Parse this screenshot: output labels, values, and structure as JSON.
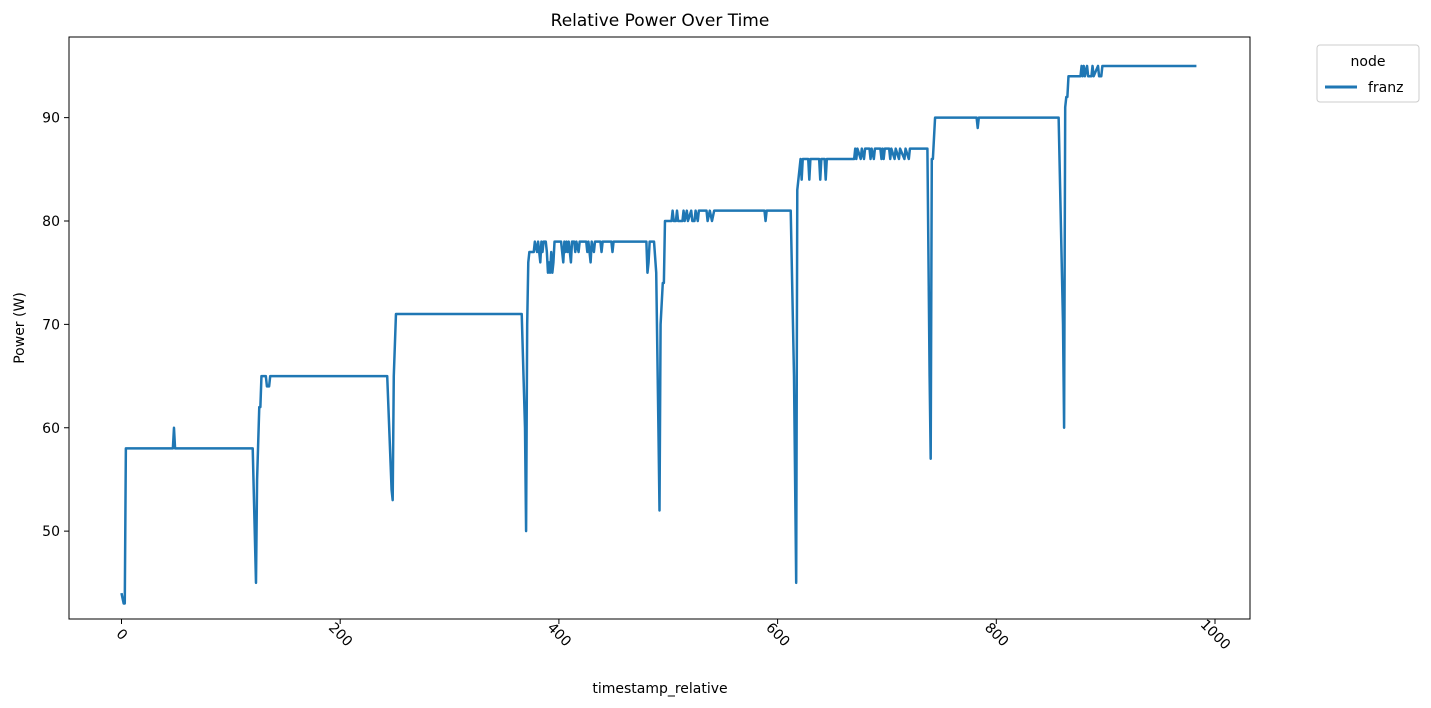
{
  "chart_data": {
    "type": "line",
    "title": "Relative Power Over Time",
    "xlabel": "timestamp_relative",
    "ylabel": "Power (W)",
    "xlim": [
      -48,
      1032
    ],
    "ylim": [
      41.5,
      97.8
    ],
    "xticks": [
      0,
      200,
      400,
      600,
      800,
      1000
    ],
    "yticks": [
      50,
      60,
      70,
      80,
      90
    ],
    "xtick_rotation": 45,
    "grid": false,
    "legend": {
      "title": "node",
      "placement": "upper-right-outside"
    },
    "series": [
      {
        "name": "franz",
        "color": "#1f77b4",
        "points": [
          [
            0,
            44
          ],
          [
            1,
            43.5
          ],
          [
            2,
            43
          ],
          [
            3,
            43
          ],
          [
            4,
            58
          ],
          [
            47,
            58
          ],
          [
            48,
            60
          ],
          [
            49,
            58
          ],
          [
            120,
            58
          ],
          [
            123,
            45
          ],
          [
            124,
            55
          ],
          [
            126,
            62
          ],
          [
            127,
            62
          ],
          [
            128,
            65
          ],
          [
            132,
            65
          ],
          [
            133,
            64
          ],
          [
            135,
            64
          ],
          [
            136,
            65
          ],
          [
            243,
            65
          ],
          [
            247,
            54
          ],
          [
            248,
            53
          ],
          [
            249,
            65
          ],
          [
            251,
            71
          ],
          [
            366,
            71
          ],
          [
            369,
            60
          ],
          [
            370,
            50
          ],
          [
            371,
            70
          ],
          [
            372,
            76
          ],
          [
            373,
            77
          ],
          [
            377,
            77
          ],
          [
            378,
            78
          ],
          [
            380,
            77
          ],
          [
            381,
            78
          ],
          [
            382,
            77
          ],
          [
            383,
            76
          ],
          [
            384,
            78
          ],
          [
            385,
            77
          ],
          [
            386,
            78
          ],
          [
            388,
            78
          ],
          [
            389,
            77
          ],
          [
            390,
            75
          ],
          [
            391,
            76
          ],
          [
            392,
            75
          ],
          [
            393,
            77
          ],
          [
            394,
            75
          ],
          [
            395,
            76
          ],
          [
            396,
            78
          ],
          [
            402,
            78
          ],
          [
            403,
            77
          ],
          [
            404,
            76
          ],
          [
            405,
            78
          ],
          [
            406,
            77
          ],
          [
            407,
            78
          ],
          [
            408,
            77
          ],
          [
            409,
            78
          ],
          [
            410,
            77
          ],
          [
            411,
            76
          ],
          [
            412,
            78
          ],
          [
            414,
            78
          ],
          [
            415,
            77
          ],
          [
            416,
            78
          ],
          [
            418,
            77
          ],
          [
            419,
            78
          ],
          [
            425,
            78
          ],
          [
            426,
            77
          ],
          [
            427,
            78
          ],
          [
            428,
            77
          ],
          [
            429,
            76
          ],
          [
            430,
            78
          ],
          [
            432,
            77
          ],
          [
            433,
            78
          ],
          [
            438,
            78
          ],
          [
            439,
            77
          ],
          [
            440,
            78
          ],
          [
            448,
            78
          ],
          [
            449,
            77
          ],
          [
            450,
            78
          ],
          [
            480,
            78
          ],
          [
            481,
            75
          ],
          [
            482,
            76
          ],
          [
            483,
            78
          ],
          [
            487,
            78
          ],
          [
            489,
            75
          ],
          [
            491,
            60
          ],
          [
            492,
            52
          ],
          [
            493,
            70
          ],
          [
            495,
            74
          ],
          [
            496,
            74
          ],
          [
            497,
            80
          ],
          [
            503,
            80
          ],
          [
            504,
            81
          ],
          [
            505,
            80
          ],
          [
            507,
            80
          ],
          [
            508,
            81
          ],
          [
            509,
            80
          ],
          [
            513,
            80
          ],
          [
            514,
            81
          ],
          [
            515,
            80
          ],
          [
            517,
            81
          ],
          [
            518,
            80
          ],
          [
            521,
            81
          ],
          [
            522,
            80
          ],
          [
            524,
            80
          ],
          [
            525,
            81
          ],
          [
            527,
            80
          ],
          [
            528,
            81
          ],
          [
            535,
            81
          ],
          [
            536,
            80
          ],
          [
            538,
            81
          ],
          [
            540,
            80
          ],
          [
            542,
            81
          ],
          [
            588,
            81
          ],
          [
            589,
            80
          ],
          [
            590,
            81
          ],
          [
            612,
            81
          ],
          [
            615,
            65
          ],
          [
            617,
            45
          ],
          [
            618,
            83
          ],
          [
            619,
            84
          ],
          [
            620,
            85
          ],
          [
            621,
            86
          ],
          [
            622,
            84
          ],
          [
            623,
            86
          ],
          [
            628,
            86
          ],
          [
            629,
            84
          ],
          [
            630,
            86
          ],
          [
            638,
            86
          ],
          [
            639,
            84
          ],
          [
            640,
            86
          ],
          [
            643,
            86
          ],
          [
            644,
            84
          ],
          [
            645,
            86
          ],
          [
            670,
            86
          ],
          [
            671,
            87
          ],
          [
            672,
            86
          ],
          [
            673,
            87
          ],
          [
            676,
            86
          ],
          [
            677,
            87
          ],
          [
            679,
            86
          ],
          [
            680,
            87
          ],
          [
            684,
            87
          ],
          [
            685,
            86
          ],
          [
            686,
            87
          ],
          [
            688,
            86
          ],
          [
            689,
            87
          ],
          [
            694,
            87
          ],
          [
            695,
            86
          ],
          [
            696,
            87
          ],
          [
            697,
            86
          ],
          [
            698,
            87
          ],
          [
            702,
            87
          ],
          [
            703,
            86
          ],
          [
            704,
            87
          ],
          [
            707,
            86
          ],
          [
            708,
            87
          ],
          [
            711,
            86
          ],
          [
            712,
            87
          ],
          [
            716,
            86
          ],
          [
            717,
            87
          ],
          [
            720,
            86
          ],
          [
            721,
            87
          ],
          [
            737,
            87
          ],
          [
            739,
            65
          ],
          [
            740,
            57
          ],
          [
            741,
            86
          ],
          [
            742,
            86
          ],
          [
            743,
            88
          ],
          [
            744,
            90
          ],
          [
            782,
            90
          ],
          [
            783,
            89
          ],
          [
            784,
            90
          ],
          [
            857,
            90
          ],
          [
            861,
            70
          ],
          [
            862,
            60
          ],
          [
            863,
            91
          ],
          [
            864,
            92
          ],
          [
            865,
            92
          ],
          [
            866,
            94
          ],
          [
            877,
            94
          ],
          [
            878,
            95
          ],
          [
            879,
            94
          ],
          [
            880,
            95
          ],
          [
            881,
            94
          ],
          [
            883,
            95
          ],
          [
            884,
            94
          ],
          [
            887,
            94
          ],
          [
            888,
            95
          ],
          [
            889,
            94
          ],
          [
            893,
            95
          ],
          [
            894,
            94
          ],
          [
            896,
            94
          ],
          [
            897,
            95
          ],
          [
            983,
            95
          ]
        ]
      }
    ]
  }
}
